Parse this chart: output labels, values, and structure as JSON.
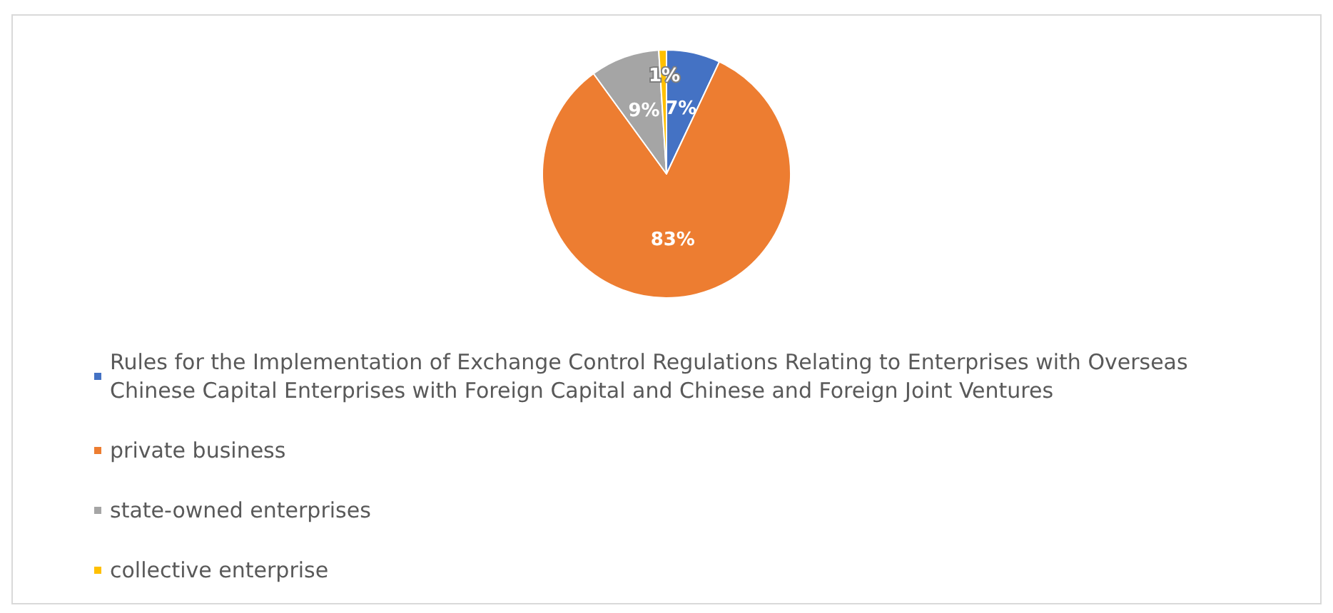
{
  "chart_data": {
    "type": "pie",
    "categories": [
      "Rules for the Implementation of Exchange Control Regulations Relating to Enterprises with Overseas Chinese Capital Enterprises with Foreign Capital and Chinese and Foreign Joint Ventures",
      "private business",
      "state-owned enterprises",
      "collective enterprise"
    ],
    "values": [
      7,
      83,
      9,
      1
    ],
    "colors": [
      "#4472c4",
      "#ed7d31",
      "#a5a5a5",
      "#ffc000"
    ],
    "value_labels": [
      "7%",
      "83%",
      "9%",
      "1%"
    ],
    "legend": "bottom"
  }
}
